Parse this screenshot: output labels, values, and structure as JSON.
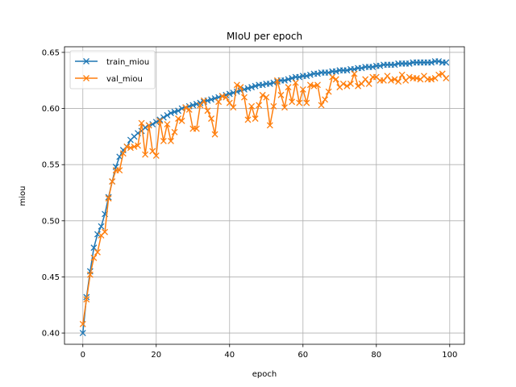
{
  "chart_data": {
    "type": "line",
    "title": "MIoU per epoch",
    "xlabel": "epoch",
    "ylabel": "miou",
    "xlim": [
      -5,
      104
    ],
    "ylim": [
      0.39,
      0.655
    ],
    "xticks": [
      0,
      20,
      40,
      60,
      80,
      100
    ],
    "yticks": [
      0.4,
      0.45,
      0.5,
      0.55,
      0.6,
      0.65
    ],
    "ytick_labels": [
      "0.40",
      "0.45",
      "0.50",
      "0.55",
      "0.60",
      "0.65"
    ],
    "grid": true,
    "legend_position": "top-left",
    "marker": "x",
    "series": [
      {
        "name": "train_miou",
        "color": "#1f77b4",
        "x": [
          0,
          1,
          2,
          3,
          4,
          5,
          6,
          7,
          8,
          9,
          10,
          11,
          12,
          13,
          14,
          15,
          16,
          17,
          18,
          19,
          20,
          21,
          22,
          23,
          24,
          25,
          26,
          27,
          28,
          29,
          30,
          31,
          32,
          33,
          34,
          35,
          36,
          37,
          38,
          39,
          40,
          41,
          42,
          43,
          44,
          45,
          46,
          47,
          48,
          49,
          50,
          51,
          52,
          53,
          54,
          55,
          56,
          57,
          58,
          59,
          60,
          61,
          62,
          63,
          64,
          65,
          66,
          67,
          68,
          69,
          70,
          71,
          72,
          73,
          74,
          75,
          76,
          77,
          78,
          79,
          80,
          81,
          82,
          83,
          84,
          85,
          86,
          87,
          88,
          89,
          90,
          91,
          92,
          93,
          94,
          95,
          96,
          97,
          98,
          99
        ],
        "values": [
          0.4,
          0.432,
          0.455,
          0.476,
          0.488,
          0.495,
          0.506,
          0.521,
          0.535,
          0.548,
          0.557,
          0.563,
          0.566,
          0.572,
          0.575,
          0.578,
          0.58,
          0.583,
          0.585,
          0.586,
          0.588,
          0.59,
          0.592,
          0.594,
          0.596,
          0.597,
          0.598,
          0.6,
          0.601,
          0.602,
          0.603,
          0.604,
          0.605,
          0.606,
          0.607,
          0.608,
          0.609,
          0.61,
          0.611,
          0.612,
          0.613,
          0.614,
          0.615,
          0.616,
          0.617,
          0.618,
          0.619,
          0.62,
          0.621,
          0.621,
          0.622,
          0.622,
          0.623,
          0.624,
          0.625,
          0.625,
          0.626,
          0.627,
          0.628,
          0.628,
          0.629,
          0.629,
          0.63,
          0.631,
          0.631,
          0.632,
          0.632,
          0.632,
          0.633,
          0.633,
          0.634,
          0.634,
          0.634,
          0.635,
          0.635,
          0.636,
          0.636,
          0.637,
          0.637,
          0.637,
          0.638,
          0.638,
          0.639,
          0.639,
          0.639,
          0.639,
          0.64,
          0.64,
          0.64,
          0.64,
          0.641,
          0.641,
          0.641,
          0.641,
          0.641,
          0.641,
          0.642,
          0.642,
          0.641,
          0.641
        ]
      },
      {
        "name": "val_miou",
        "color": "#ff7f0e",
        "x": [
          0,
          1,
          2,
          3,
          4,
          5,
          6,
          7,
          8,
          9,
          10,
          11,
          12,
          13,
          14,
          15,
          16,
          17,
          18,
          19,
          20,
          21,
          22,
          23,
          24,
          25,
          26,
          27,
          28,
          29,
          30,
          31,
          32,
          33,
          34,
          35,
          36,
          37,
          38,
          39,
          40,
          41,
          42,
          43,
          44,
          45,
          46,
          47,
          48,
          49,
          50,
          51,
          52,
          53,
          54,
          55,
          56,
          57,
          58,
          59,
          60,
          61,
          62,
          63,
          64,
          65,
          66,
          67,
          68,
          69,
          70,
          71,
          72,
          73,
          74,
          75,
          76,
          77,
          78,
          79,
          80,
          81,
          82,
          83,
          84,
          85,
          86,
          87,
          88,
          89,
          90,
          91,
          92,
          93,
          94,
          95,
          96,
          97,
          98,
          99
        ],
        "values": [
          0.408,
          0.43,
          0.452,
          0.467,
          0.472,
          0.487,
          0.49,
          0.52,
          0.535,
          0.545,
          0.545,
          0.56,
          0.566,
          0.565,
          0.566,
          0.567,
          0.587,
          0.559,
          0.585,
          0.562,
          0.558,
          0.589,
          0.571,
          0.586,
          0.571,
          0.579,
          0.591,
          0.589,
          0.601,
          0.599,
          0.582,
          0.582,
          0.603,
          0.607,
          0.598,
          0.591,
          0.577,
          0.606,
          0.611,
          0.61,
          0.605,
          0.601,
          0.621,
          0.619,
          0.61,
          0.59,
          0.602,
          0.591,
          0.603,
          0.612,
          0.61,
          0.585,
          0.602,
          0.625,
          0.612,
          0.601,
          0.619,
          0.606,
          0.623,
          0.605,
          0.617,
          0.605,
          0.621,
          0.62,
          0.621,
          0.603,
          0.608,
          0.615,
          0.628,
          0.626,
          0.619,
          0.622,
          0.62,
          0.622,
          0.631,
          0.62,
          0.622,
          0.626,
          0.622,
          0.628,
          0.628,
          0.625,
          0.625,
          0.629,
          0.625,
          0.626,
          0.624,
          0.63,
          0.625,
          0.628,
          0.627,
          0.627,
          0.626,
          0.629,
          0.626,
          0.626,
          0.627,
          0.63,
          0.631,
          0.627
        ]
      }
    ]
  }
}
